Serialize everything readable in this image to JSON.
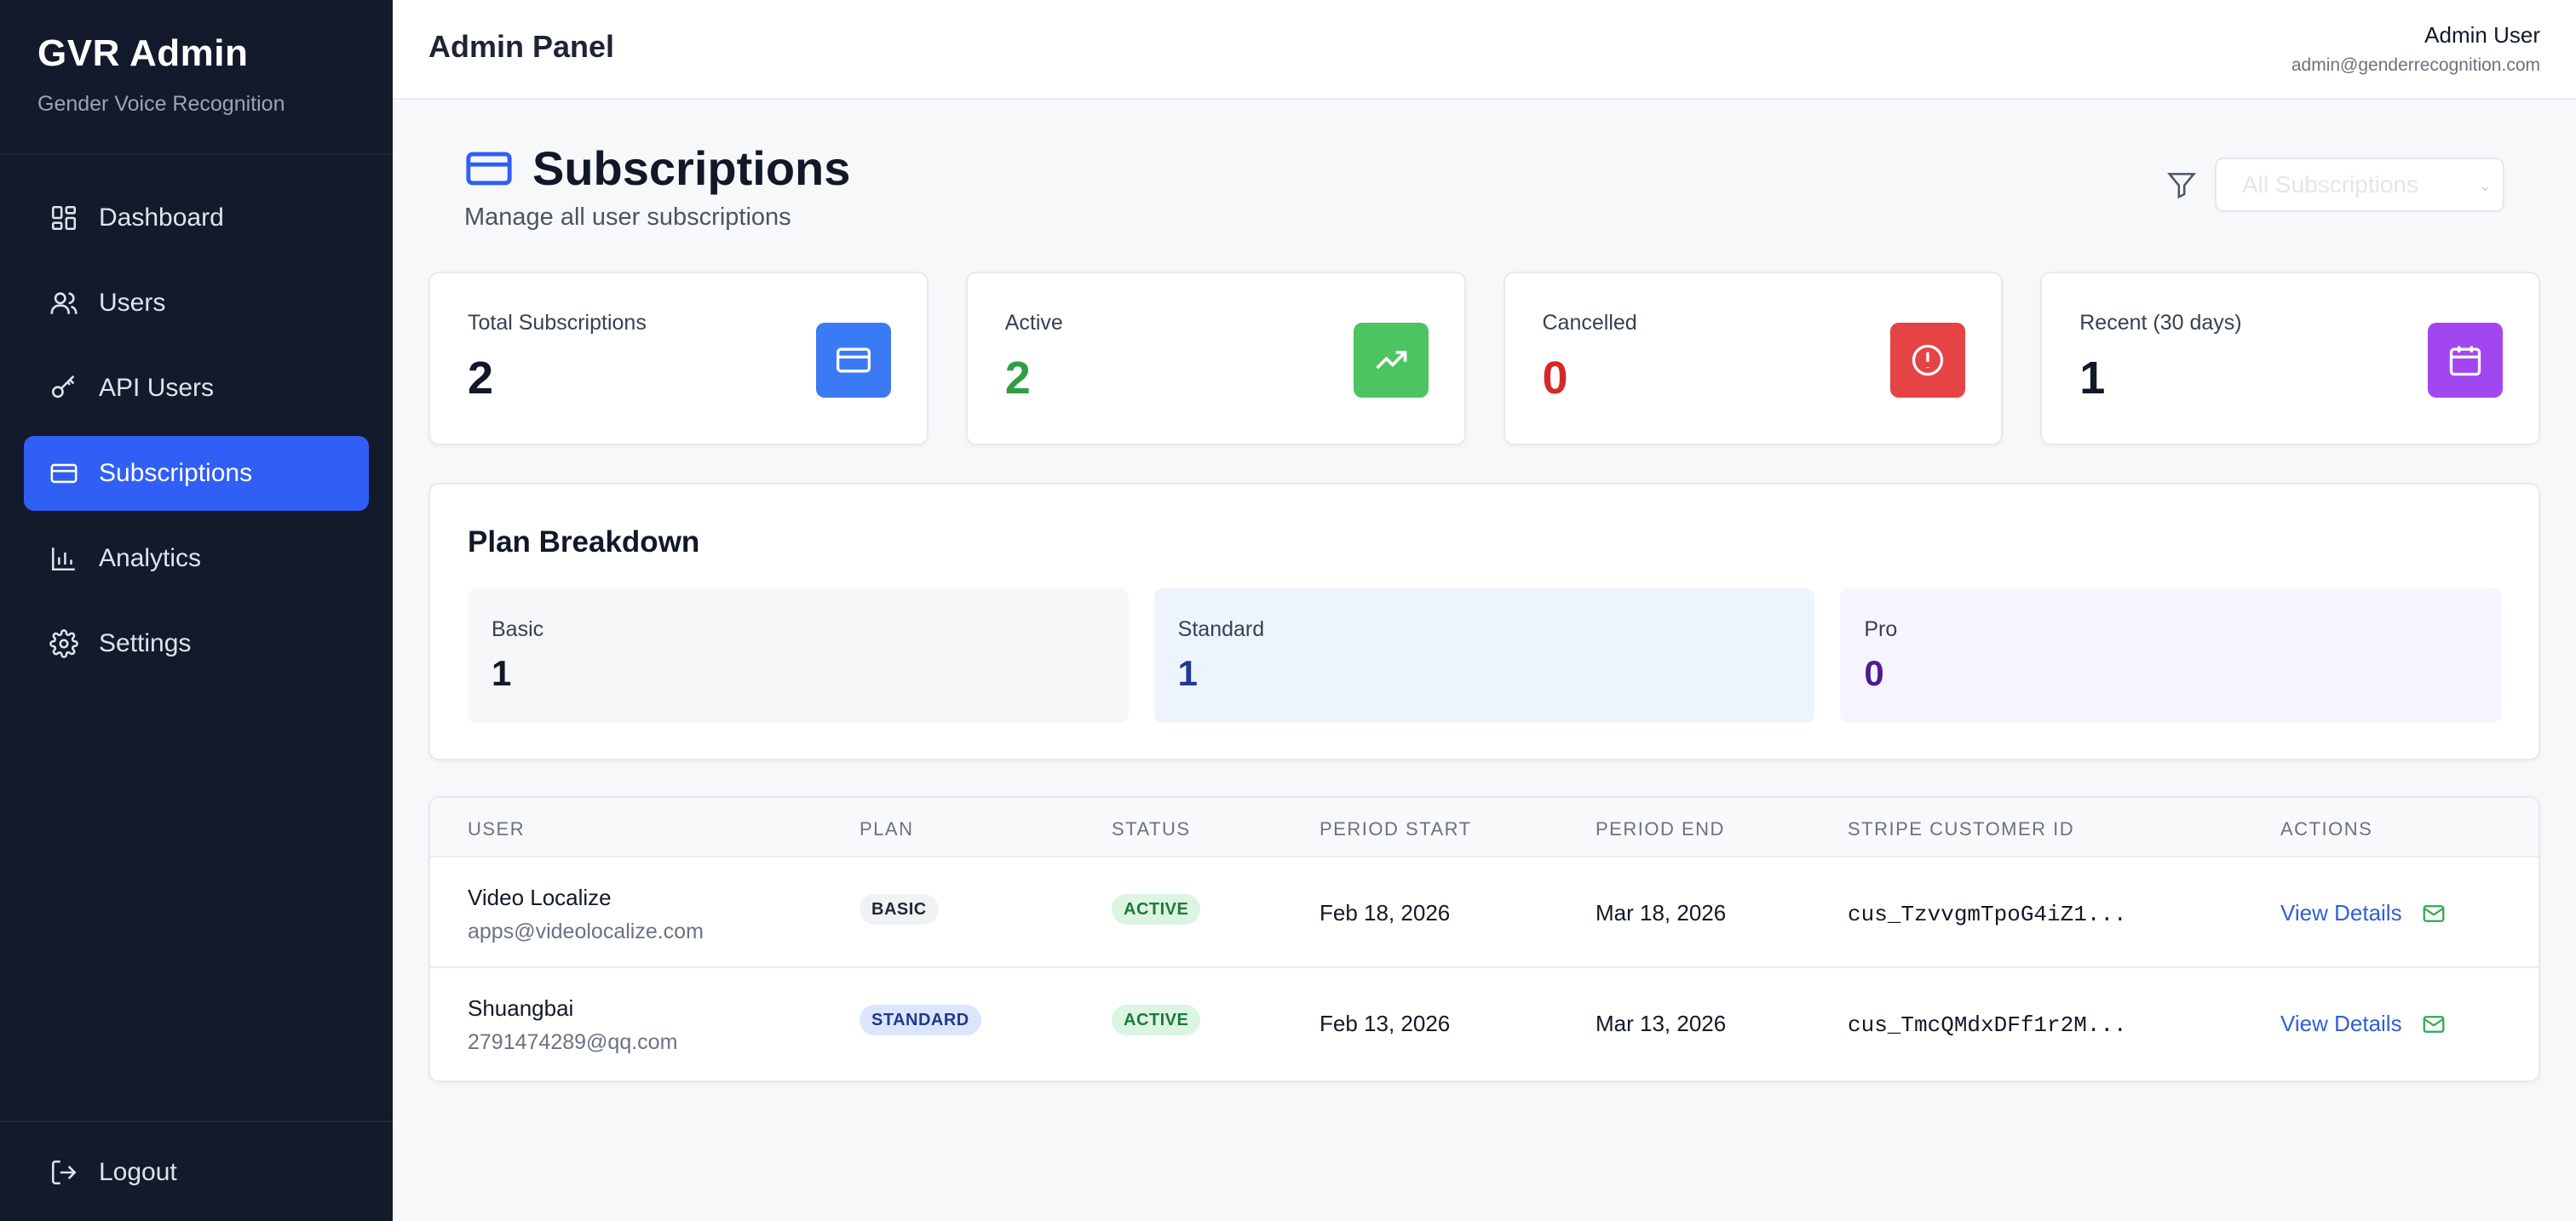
{
  "sidebar": {
    "brand_title": "GVR Admin",
    "brand_sub": "Gender Voice Recognition",
    "items": [
      {
        "label": "Dashboard",
        "icon": "dashboard-icon"
      },
      {
        "label": "Users",
        "icon": "users-icon"
      },
      {
        "label": "API Users",
        "icon": "key-icon"
      },
      {
        "label": "Subscriptions",
        "icon": "credit-card-icon",
        "active": true
      },
      {
        "label": "Analytics",
        "icon": "bar-chart-icon"
      },
      {
        "label": "Settings",
        "icon": "gear-icon"
      }
    ],
    "logout": "Logout"
  },
  "topbar": {
    "title": "Admin Panel",
    "user_name": "Admin User",
    "user_email": "admin@genderrecognition.com"
  },
  "page": {
    "title": "Subscriptions",
    "subtitle": "Manage all user subscriptions",
    "filter_placeholder": "All Subscriptions"
  },
  "stats": [
    {
      "label": "Total Subscriptions",
      "value": "2",
      "color": "#111827",
      "icon_bg": "#3b7af5",
      "icon": "credit-card-icon"
    },
    {
      "label": "Active",
      "value": "2",
      "color": "#2f9e44",
      "icon_bg": "#4cc45f",
      "icon": "trending-up-icon"
    },
    {
      "label": "Cancelled",
      "value": "0",
      "color": "#d62828",
      "icon_bg": "#e54344",
      "icon": "alert-circle-icon"
    },
    {
      "label": "Recent (30 days)",
      "value": "1",
      "color": "#111827",
      "icon_bg": "#a247f0",
      "icon": "calendar-icon"
    }
  ],
  "plan_breakdown": {
    "title": "Plan Breakdown",
    "plans": [
      {
        "label": "Basic",
        "value": "1",
        "bg": "#f6f7f9",
        "color": "#111827"
      },
      {
        "label": "Standard",
        "value": "1",
        "bg": "#eef4fe",
        "color": "#1f3a93"
      },
      {
        "label": "Pro",
        "value": "0",
        "bg": "#f8f4fd",
        "color": "#4c1d95"
      }
    ]
  },
  "table": {
    "headers": [
      "USER",
      "PLAN",
      "STATUS",
      "PERIOD START",
      "PERIOD END",
      "STRIPE CUSTOMER ID",
      "ACTIONS"
    ],
    "rows": [
      {
        "name": "Video Localize",
        "email": "apps@videolocalize.com",
        "plan": "BASIC",
        "status": "ACTIVE",
        "start": "Feb 18, 2026",
        "end": "Mar 18, 2026",
        "customer_id": "cus_TzvvgmTpoG4iZ1...",
        "action": "View Details"
      },
      {
        "name": "Shuangbai",
        "email": "2791474289@qq.com",
        "plan": "STANDARD",
        "status": "ACTIVE",
        "start": "Feb 13, 2026",
        "end": "Mar 13, 2026",
        "customer_id": "cus_TmcQMdxDFf1r2M...",
        "action": "View Details"
      }
    ]
  },
  "colors": {
    "accent": "#2f5ff5",
    "sidebar_bg": "#131a2b",
    "badge_basic_bg": "#f1f2f4",
    "badge_standard_bg": "#dbe6fd",
    "badge_active_bg": "#dcf4e2",
    "badge_active_fg": "#1e7a3a"
  }
}
